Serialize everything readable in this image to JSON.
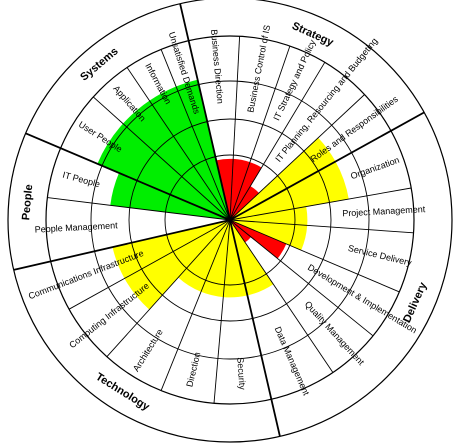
{
  "chart_data": {
    "type": "radial-maturity-wheel",
    "colors": {
      "green": "#00ee00",
      "yellow": "#ffff00",
      "red": "#ff0000",
      "line": "#000000",
      "background": "#ffffff"
    },
    "groups": [
      {
        "label": "Strategy"
      },
      {
        "label": "Delivery"
      },
      {
        "label": "Technology"
      },
      {
        "label": "People"
      },
      {
        "label": "Systems"
      }
    ],
    "sectors": [
      {
        "label": "Business Direction",
        "level": 0.34,
        "color": "red"
      },
      {
        "label": "Business Control of IS",
        "level": 0.34,
        "color": "red"
      },
      {
        "label": "IT Strategy and Policy",
        "level": 0.34,
        "color": "red"
      },
      {
        "label": "IT Planning, Resourcing and Budgeting",
        "level": 0.22,
        "color": "red"
      },
      {
        "label": "Roles and Responsibilities",
        "level": 0.67,
        "color": "yellow"
      },
      {
        "label": "Organization",
        "level": 0.67,
        "color": "yellow"
      },
      {
        "label": "Project Management",
        "level": 0.43,
        "color": "yellow"
      },
      {
        "label": "Service Delivery",
        "level": 0.43,
        "color": "yellow"
      },
      {
        "label": "Development & Implementation",
        "level": 0.34,
        "color": "red"
      },
      {
        "label": "Quality Management",
        "level": 0.15,
        "color": "red"
      },
      {
        "label": "Data Management",
        "level": 0.43,
        "color": "yellow"
      },
      {
        "label": "Security",
        "level": 0.43,
        "color": "yellow"
      },
      {
        "label": "Direction",
        "level": 0.43,
        "color": "yellow"
      },
      {
        "label": "Architecture",
        "level": 0.43,
        "color": "yellow"
      },
      {
        "label": "Computing Infrastructure",
        "level": 0.67,
        "color": "yellow"
      },
      {
        "label": "Communications Infrastructure",
        "level": 0.67,
        "color": "yellow"
      },
      {
        "label": "People Management",
        "level": 0,
        "color": "green"
      },
      {
        "label": "IT People",
        "level": 0.67,
        "color": "green"
      },
      {
        "label": "User People",
        "level": 0.8,
        "color": "green"
      },
      {
        "label": "Application",
        "level": 0.8,
        "color": "green"
      },
      {
        "label": "Information",
        "level": 0.8,
        "color": "green"
      },
      {
        "label": "Unsatisfied Demands",
        "level": 0.8,
        "color": "green"
      }
    ]
  }
}
